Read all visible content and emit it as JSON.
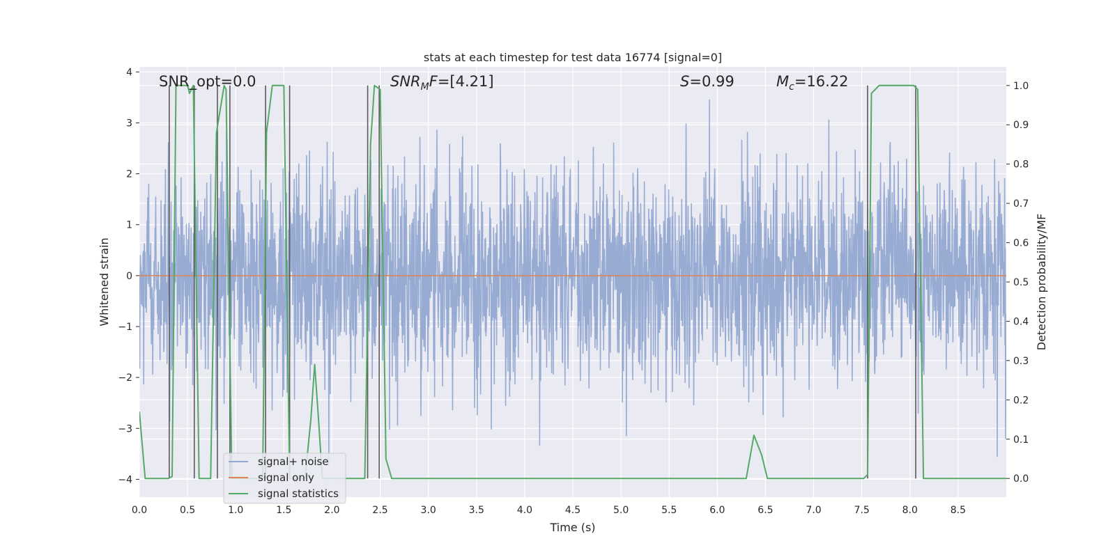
{
  "chart_data": {
    "type": "line",
    "title": "stats at each timestep for test data 16774 [signal=0]",
    "xlabel": "Time (s)",
    "ylabel": "Whitened strain",
    "y2label": "Detection probability/MF",
    "xlim": [
      0.0,
      9.0
    ],
    "ylim": [
      -4.35,
      4.1
    ],
    "y2lim": [
      -0.0475,
      1.0475
    ],
    "xticks": [
      "0.0",
      "0.5",
      "1.0",
      "1.5",
      "2.0",
      "2.5",
      "3.0",
      "3.5",
      "4.0",
      "4.5",
      "5.0",
      "5.5",
      "6.0",
      "6.5",
      "7.0",
      "7.5",
      "8.0",
      "8.5"
    ],
    "yticks": [
      "−4",
      "−3",
      "−2",
      "−1",
      "0",
      "1",
      "2",
      "3",
      "4"
    ],
    "y2ticks": [
      "0.0",
      "0.1",
      "0.2",
      "0.3",
      "0.4",
      "0.5",
      "0.6",
      "0.7",
      "0.8",
      "0.9",
      "1.0"
    ],
    "grid": true,
    "legend_position": "lower-left",
    "annotations": {
      "snr_opt": "SNR_opt=0.0",
      "snr_mf": "=[4.21]",
      "s": "=0.99",
      "mc": "=16.22"
    },
    "series": [
      {
        "name": "signal+ noise",
        "color": "#92a8d1",
        "description_of_values": "whitened noisy strain, roughly symmetric around 0, amplitude about ±2 with spikes to about ±3.7",
        "envelope": [
          -2.6,
          2.6
        ],
        "peak_range": [
          -3.7,
          3.7
        ]
      },
      {
        "name": "signal only",
        "color": "#dd8452",
        "x": [
          0.0,
          9.0
        ],
        "y": [
          0.0,
          0.0
        ]
      },
      {
        "name": "signal statistics",
        "color": "#55a868",
        "axis": "right",
        "x": [
          0.0,
          0.06,
          0.2,
          0.3,
          0.34,
          0.38,
          0.5,
          0.52,
          0.56,
          0.62,
          0.74,
          0.8,
          0.88,
          0.9,
          0.96,
          1.0,
          1.28,
          1.32,
          1.38,
          1.5,
          1.56,
          1.58,
          1.72,
          1.78,
          1.82,
          1.86,
          1.9,
          1.96,
          2.0,
          2.34,
          2.4,
          2.44,
          2.5,
          2.56,
          2.62,
          6.3,
          6.38,
          6.46,
          6.52,
          7.52,
          7.56,
          7.6,
          7.68,
          8.04,
          8.08,
          8.14,
          8.2,
          9.0
        ],
        "y": [
          0.17,
          0.0,
          0.0,
          0.0,
          0.005,
          1.0,
          1.0,
          0.98,
          1.0,
          0.0,
          0.0,
          0.88,
          1.0,
          0.99,
          0.0,
          0.0,
          0.0,
          0.88,
          1.0,
          1.0,
          0.0,
          0.0,
          0.0,
          0.15,
          0.29,
          0.15,
          0.0,
          0.0,
          0.0,
          0.0,
          0.85,
          1.0,
          0.99,
          0.05,
          0.0,
          0.0,
          0.11,
          0.06,
          0.0,
          0.0,
          0.01,
          0.98,
          1.0,
          1.0,
          0.99,
          0.0,
          0.0,
          0.0
        ]
      }
    ],
    "vlines": {
      "color": "#5a5a5a",
      "x": [
        0.31,
        0.57,
        0.81,
        0.94,
        1.31,
        1.56,
        2.37,
        2.49,
        7.56,
        8.06
      ]
    }
  }
}
